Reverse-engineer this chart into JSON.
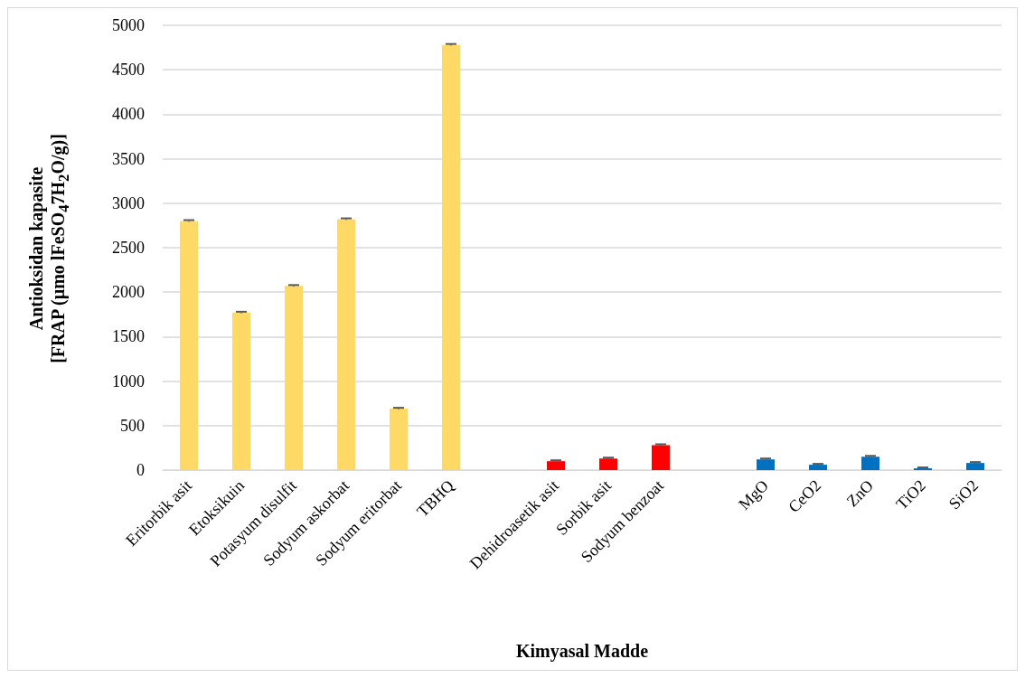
{
  "chart_data": {
    "type": "bar",
    "xlabel": "Kimyasal Madde",
    "ylabel": "Antioksidan kapasite\n[FRAP (µmo lFeSO$_{4}$7H$_{2}$O/g)]",
    "categories": [
      "Eritorbik asit",
      "Etoksikuin",
      "Potasyum disulfit",
      "Sodyum askorbat",
      "Sodyum eritorbat",
      "TBHQ",
      null,
      "Dehidroasetik asit",
      "Sorbik asit",
      "Sodyum benzoat",
      null,
      "MgO",
      "CeO2",
      "ZnO",
      "TiO2",
      "SiO2"
    ],
    "values": [
      2800,
      1770,
      2070,
      2820,
      690,
      4780,
      null,
      100,
      130,
      280,
      null,
      120,
      60,
      150,
      20,
      80
    ],
    "errors": [
      10,
      10,
      10,
      10,
      10,
      10,
      null,
      10,
      10,
      10,
      null,
      10,
      10,
      10,
      10,
      10
    ],
    "colors": [
      "#ffd966",
      "#ffd966",
      "#ffd966",
      "#ffd966",
      "#ffd966",
      "#ffd966",
      "#ffd966",
      "#ff0000",
      "#ff0000",
      "#ff0000",
      "#0070c0",
      "#0070c0",
      "#0070c0",
      "#0070c0",
      "#0070c0",
      "#0070c0"
    ],
    "ylim": [
      0,
      5000
    ],
    "yticks": [
      0,
      500,
      1000,
      1500,
      2000,
      2500,
      3000,
      3500,
      4000,
      4500,
      5000
    ],
    "grid": "y"
  }
}
